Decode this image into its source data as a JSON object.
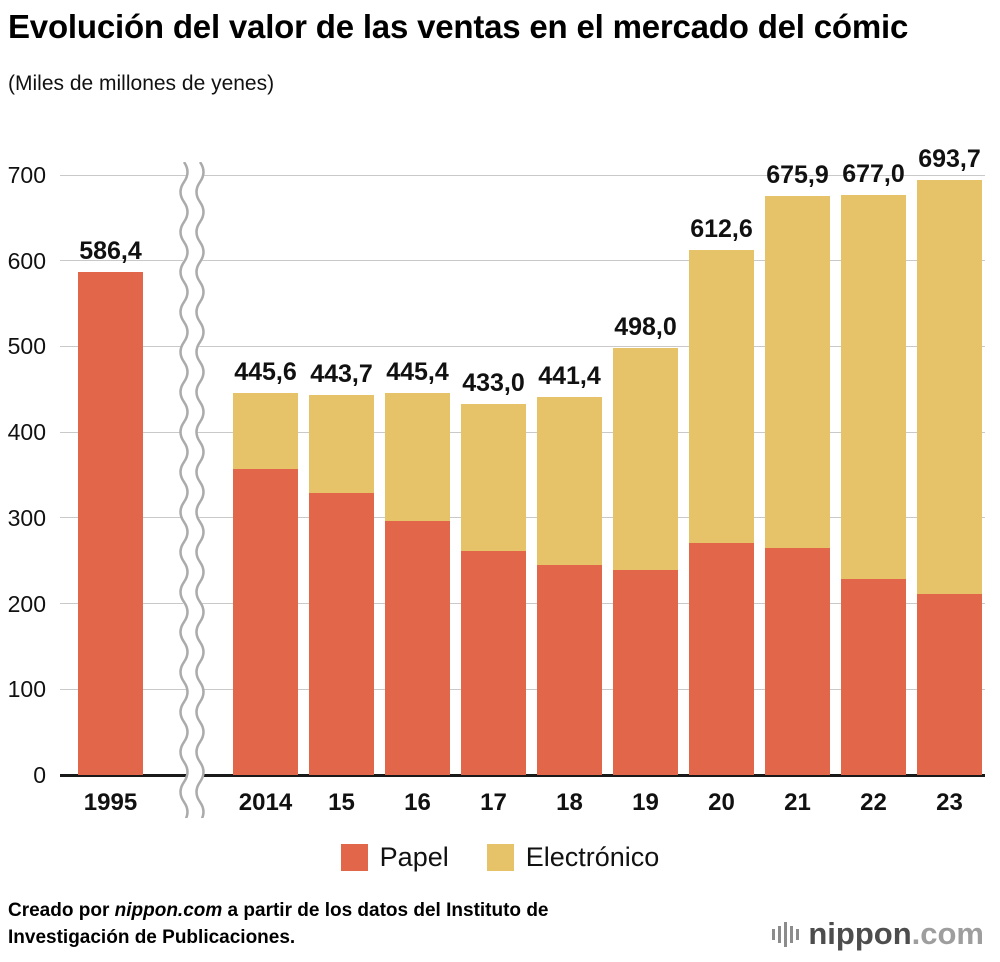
{
  "footer": {
    "credit_prefix": "Creado por ",
    "credit_source": "nippon.com",
    "credit_suffix": " a partir de los datos del Instituto de Investigación de Publicaciones.",
    "logo_text": "nippon",
    "logo_suffix": ".com"
  },
  "chart_data": {
    "type": "bar",
    "stacked": true,
    "title": "Evolución del valor de las ventas en el mercado del cómic",
    "units_label": "(Miles de millones de yenes)",
    "categories": [
      "1995",
      "2014",
      "15",
      "16",
      "17",
      "18",
      "19",
      "20",
      "21",
      "22",
      "23"
    ],
    "series": [
      {
        "name": "Papel",
        "color": "#e2674a",
        "values": [
          586.4,
          356.9,
          328.8,
          296.3,
          261.9,
          244.9,
          238.7,
          270.6,
          264.5,
          229.1,
          210.7
        ]
      },
      {
        "name": "Electrónico",
        "color": "#e6c369",
        "values": [
          0,
          88.7,
          114.9,
          149.1,
          171.1,
          196.5,
          259.3,
          342.0,
          411.4,
          447.9,
          483.0
        ]
      }
    ],
    "totals_labels": [
      "586,4",
      "445,6",
      "443,7",
      "445,4",
      "433,0",
      "441,4",
      "498,0",
      "612,6",
      "675,9",
      "677,0",
      "693,7"
    ],
    "ylim": [
      0,
      700
    ],
    "yticks": [
      0,
      100,
      200,
      300,
      400,
      500,
      600,
      700
    ],
    "grid": true,
    "legend_position": "bottom",
    "axis_break_between": [
      "1995",
      "2014"
    ]
  }
}
